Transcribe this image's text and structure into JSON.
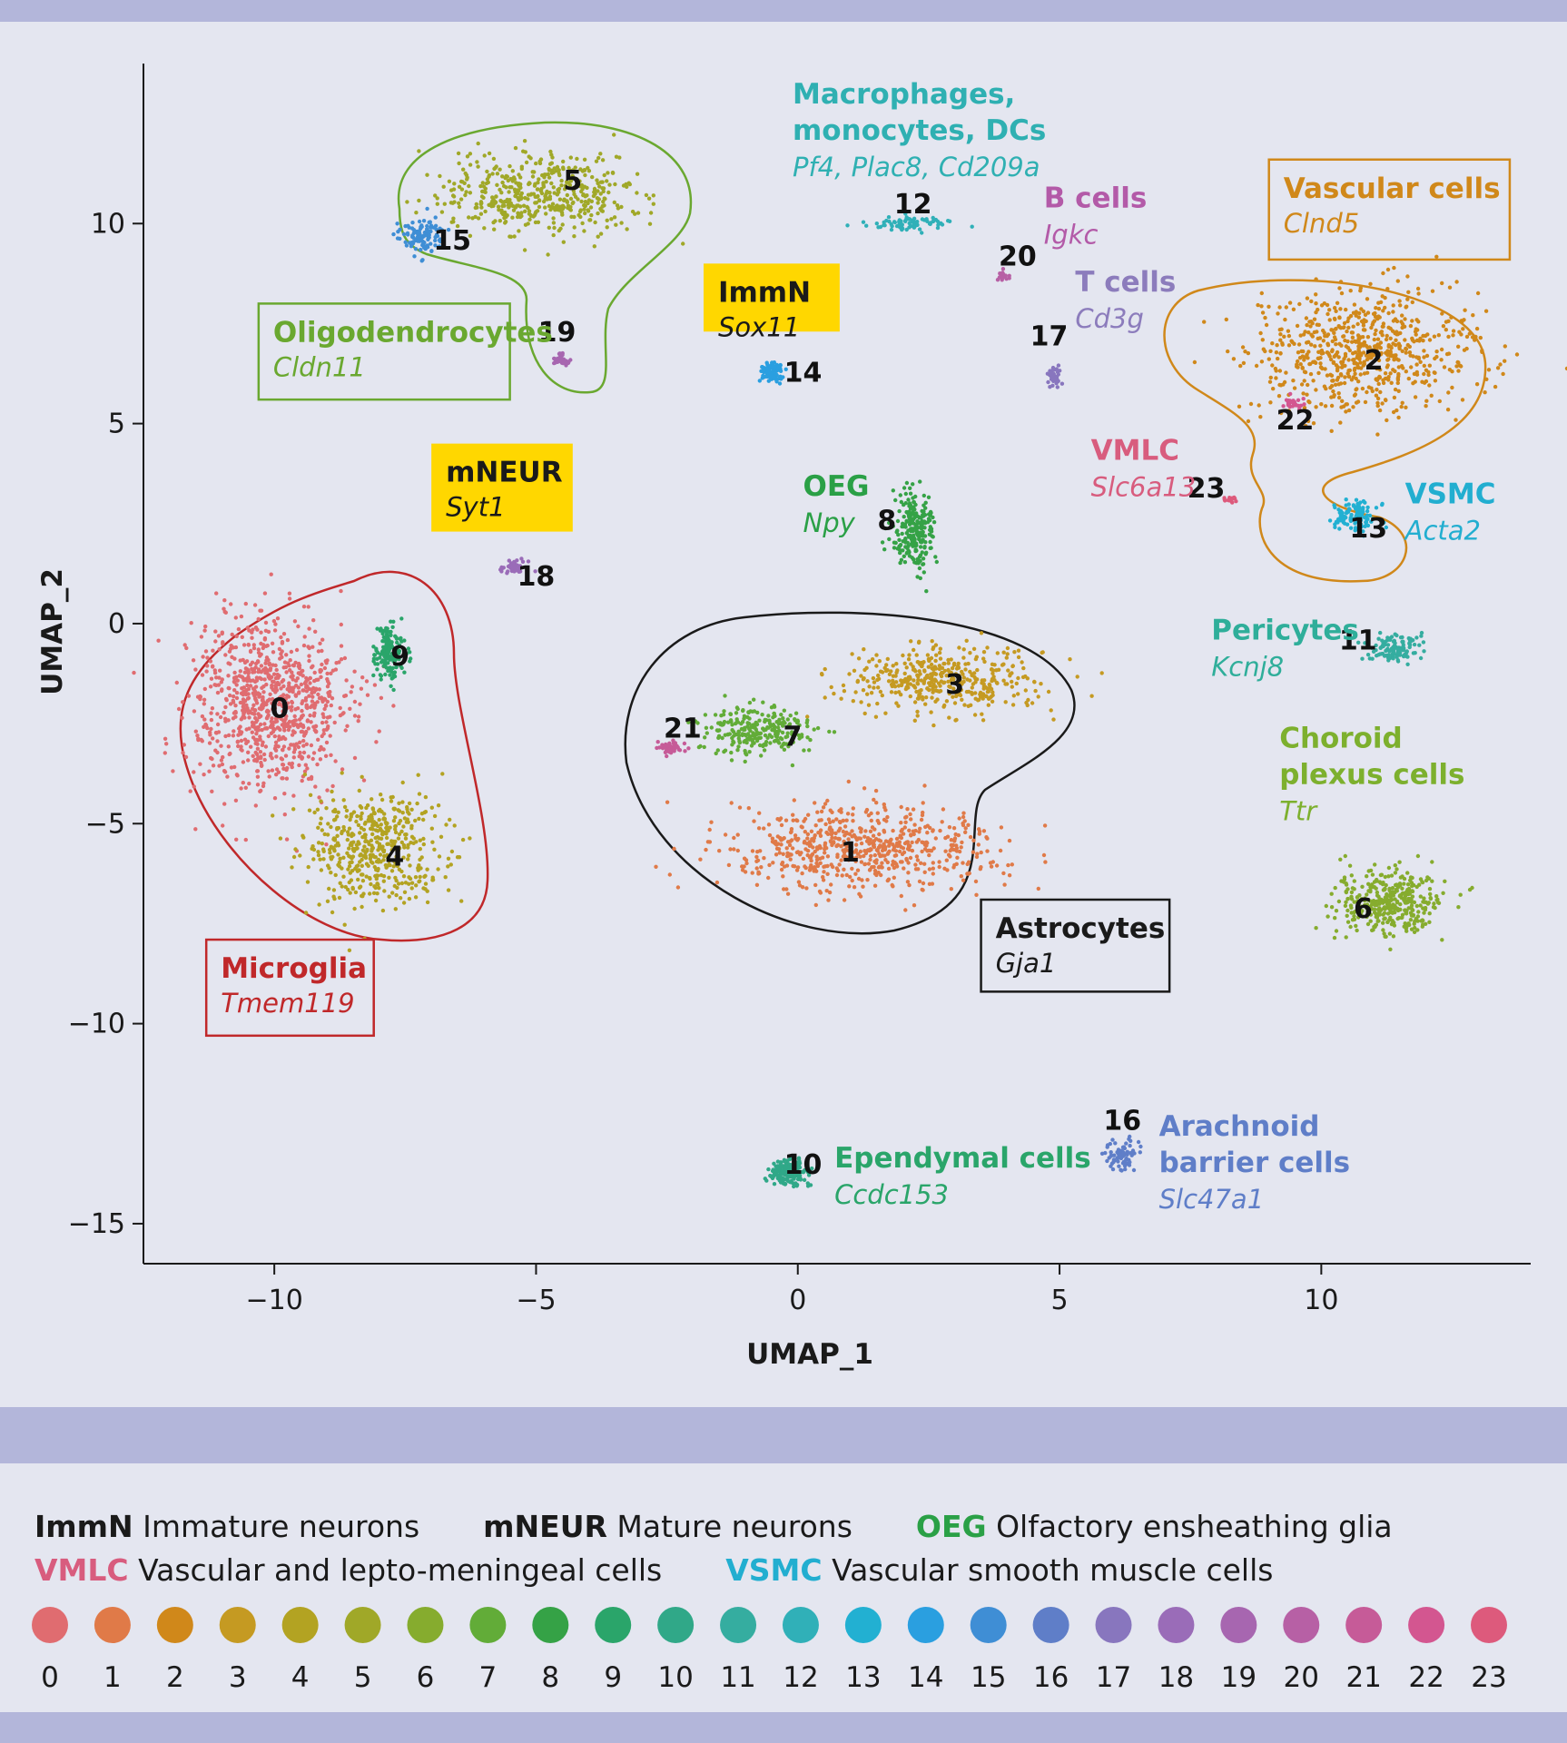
{
  "chart_data": {
    "type": "scatter",
    "title": "",
    "xlabel": "UMAP_1",
    "ylabel": "UMAP_2",
    "xlim": [
      -12.5,
      14
    ],
    "ylim": [
      -16,
      14
    ],
    "x_ticks": [
      -10,
      -5,
      0,
      5,
      10
    ],
    "y_ticks": [
      -15,
      -10,
      -5,
      0,
      5,
      10
    ],
    "x_tick_labels": [
      "−10",
      "−5",
      "0",
      "5",
      "10"
    ],
    "y_tick_labels": [
      "−15",
      "−10",
      "−5",
      "0",
      "5",
      "10"
    ],
    "grid": false,
    "cluster_colors": [
      "#e06c70",
      "#e07a48",
      "#d0881a",
      "#c59a22",
      "#b3a322",
      "#a0a828",
      "#86ac2e",
      "#62ac38",
      "#35a246",
      "#2aa56a",
      "#30a888",
      "#35ada0",
      "#30b0b8",
      "#22b0d2",
      "#2a9fe0",
      "#3f8ed5",
      "#5f7ec8",
      "#8876be",
      "#9a6cb8",
      "#a766b0",
      "#b760a5",
      "#c65b98",
      "#d35690",
      "#dd5a7c"
    ],
    "clusters": [
      {
        "id": 0,
        "x": -10.1,
        "y": -2.0,
        "sx": 1.35,
        "sy": 2.0,
        "n": 900
      },
      {
        "id": 1,
        "x": 1.2,
        "y": -5.6,
        "sx": 2.4,
        "sy": 0.9,
        "n": 650
      },
      {
        "id": 2,
        "x": 10.8,
        "y": 6.8,
        "sx": 2.0,
        "sy": 1.3,
        "n": 700
      },
      {
        "id": 3,
        "x": 2.8,
        "y": -1.4,
        "sx": 1.7,
        "sy": 0.75,
        "n": 420
      },
      {
        "id": 4,
        "x": -8.1,
        "y": -5.6,
        "sx": 1.15,
        "sy": 1.25,
        "n": 500
      },
      {
        "id": 5,
        "x": -5.0,
        "y": 10.7,
        "sx": 1.7,
        "sy": 0.9,
        "n": 500
      },
      {
        "id": 6,
        "x": 11.3,
        "y": -7.0,
        "sx": 0.9,
        "sy": 0.75,
        "n": 380
      },
      {
        "id": 7,
        "x": -0.8,
        "y": -2.7,
        "sx": 1.0,
        "sy": 0.6,
        "n": 260
      },
      {
        "id": 8,
        "x": 2.2,
        "y": 2.3,
        "sx": 0.35,
        "sy": 0.9,
        "n": 240
      },
      {
        "id": 9,
        "x": -7.8,
        "y": -0.7,
        "sx": 0.25,
        "sy": 0.6,
        "n": 160
      },
      {
        "id": 10,
        "x": -0.2,
        "y": -13.7,
        "sx": 0.35,
        "sy": 0.35,
        "n": 170
      },
      {
        "id": 11,
        "x": 11.4,
        "y": -0.6,
        "sx": 0.5,
        "sy": 0.3,
        "n": 120
      },
      {
        "id": 12,
        "x": 2.2,
        "y": 10.0,
        "sx": 0.8,
        "sy": 0.15,
        "n": 80
      },
      {
        "id": 13,
        "x": 10.7,
        "y": 2.7,
        "sx": 0.4,
        "sy": 0.35,
        "n": 110
      },
      {
        "id": 14,
        "x": -0.5,
        "y": 6.3,
        "sx": 0.2,
        "sy": 0.2,
        "n": 90
      },
      {
        "id": 15,
        "x": -7.2,
        "y": 9.7,
        "sx": 0.35,
        "sy": 0.4,
        "n": 110
      },
      {
        "id": 16,
        "x": 6.2,
        "y": -13.3,
        "sx": 0.25,
        "sy": 0.3,
        "n": 80
      },
      {
        "id": 17,
        "x": 4.9,
        "y": 6.2,
        "sx": 0.1,
        "sy": 0.3,
        "n": 40
      },
      {
        "id": 18,
        "x": -5.4,
        "y": 1.4,
        "sx": 0.25,
        "sy": 0.15,
        "n": 40
      },
      {
        "id": 19,
        "x": -4.5,
        "y": 6.6,
        "sx": 0.15,
        "sy": 0.15,
        "n": 40
      },
      {
        "id": 20,
        "x": 3.9,
        "y": 8.7,
        "sx": 0.12,
        "sy": 0.1,
        "n": 25
      },
      {
        "id": 21,
        "x": -2.4,
        "y": -3.1,
        "sx": 0.25,
        "sy": 0.15,
        "n": 40
      },
      {
        "id": 22,
        "x": 9.5,
        "y": 5.5,
        "sx": 0.25,
        "sy": 0.15,
        "n": 25
      },
      {
        "id": 23,
        "x": 8.3,
        "y": 3.1,
        "sx": 0.15,
        "sy": 0.08,
        "n": 20
      }
    ],
    "cluster_labels": [
      {
        "id": 0,
        "text": "0",
        "x": -9.9,
        "y": -2.1
      },
      {
        "id": 1,
        "text": "1",
        "x": 1.0,
        "y": -5.7
      },
      {
        "id": 2,
        "text": "2",
        "x": 11.0,
        "y": 6.6
      },
      {
        "id": 3,
        "text": "3",
        "x": 3.0,
        "y": -1.5
      },
      {
        "id": 4,
        "text": "4",
        "x": -7.7,
        "y": -5.8
      },
      {
        "id": 5,
        "text": "5",
        "x": -4.3,
        "y": 11.1
      },
      {
        "id": 6,
        "text": "6",
        "x": 10.8,
        "y": -7.1
      },
      {
        "id": 7,
        "text": "7",
        "x": -0.1,
        "y": -2.8
      },
      {
        "id": 8,
        "text": "8",
        "x": 1.7,
        "y": 2.6
      },
      {
        "id": 9,
        "text": "9",
        "x": -7.6,
        "y": -0.8
      },
      {
        "id": 10,
        "text": "10",
        "x": 0.1,
        "y": -13.5
      },
      {
        "id": 11,
        "text": "11",
        "x": 10.7,
        "y": -0.4
      },
      {
        "id": 12,
        "text": "12",
        "x": 2.2,
        "y": 10.5
      },
      {
        "id": 13,
        "text": "13",
        "x": 10.9,
        "y": 2.4
      },
      {
        "id": 14,
        "text": "14",
        "x": 0.1,
        "y": 6.3
      },
      {
        "id": 15,
        "text": "15",
        "x": -6.6,
        "y": 9.6
      },
      {
        "id": 16,
        "text": "16",
        "x": 6.2,
        "y": -12.4
      },
      {
        "id": 17,
        "text": "17",
        "x": 4.8,
        "y": 7.2
      },
      {
        "id": 18,
        "text": "18",
        "x": -5.0,
        "y": 1.2
      },
      {
        "id": 19,
        "text": "19",
        "x": -4.6,
        "y": 7.3
      },
      {
        "id": 20,
        "text": "20",
        "x": 4.2,
        "y": 9.2
      },
      {
        "id": 21,
        "text": "21",
        "x": -2.2,
        "y": -2.6
      },
      {
        "id": 22,
        "text": "22",
        "x": 9.5,
        "y": 5.1
      },
      {
        "id": 23,
        "text": "23",
        "x": 7.8,
        "y": 3.4
      }
    ],
    "annotations": [
      {
        "name": "Macrophages, monocytes, DCs",
        "lines": [
          "Macrophages,",
          "monocytes, DCs"
        ],
        "marker": "Pf4, Plac8, Cd209a",
        "color": "#2fb0b2",
        "x": -0.1,
        "y": 13.0
      },
      {
        "name": "B cells",
        "lines": [
          "B cells"
        ],
        "marker": "Igkc",
        "color": "#b35aa8",
        "x": 4.7,
        "y": 10.4
      },
      {
        "name": "T cells",
        "lines": [
          "T cells"
        ],
        "marker": "Cd3g",
        "color": "#8c7cbc",
        "x": 5.3,
        "y": 8.3
      },
      {
        "name": "VMLC",
        "lines": [
          "VMLC"
        ],
        "marker": "Slc6a13",
        "color": "#d85c7e",
        "x": 5.6,
        "y": 4.1
      },
      {
        "name": "OEG",
        "lines": [
          "OEG"
        ],
        "marker": "Npy",
        "color": "#2aa046",
        "x": 0.1,
        "y": 3.2
      },
      {
        "name": "VSMC",
        "lines": [
          "VSMC"
        ],
        "marker": "Acta2",
        "color": "#22aed0",
        "x": 11.6,
        "y": 3.0
      },
      {
        "name": "Pericytes",
        "lines": [
          "Pericytes"
        ],
        "marker": "Kcnj8",
        "color": "#2fae9a",
        "x": 7.9,
        "y": -0.4
      },
      {
        "name": "Choroid plexus cells",
        "lines": [
          "Choroid",
          "plexus cells"
        ],
        "marker": "Ttr",
        "color": "#7db02e",
        "x": 9.2,
        "y": -3.1
      },
      {
        "name": "Ependymal cells",
        "lines": [
          "Ependymal cells"
        ],
        "marker": "Ccdc153",
        "color": "#2aa56a",
        "x": 0.7,
        "y": -13.6
      },
      {
        "name": "Arachnoid barrier cells",
        "lines": [
          "Arachnoid",
          "barrier cells"
        ],
        "marker": "Slc47a1",
        "color": "#5f7ec8",
        "x": 6.9,
        "y": -12.8
      }
    ],
    "boxed_labels": [
      {
        "name": "Oligodendrocytes",
        "marker": "Cldn11",
        "color": "#6aa830",
        "fill": "none",
        "x0": -10.3,
        "y0": 8.0,
        "x1": -5.5,
        "y1": 5.6
      },
      {
        "name": "Vascular cells",
        "marker": "Clnd5",
        "color": "#d0881a",
        "fill": "none",
        "x0": 9.0,
        "y0": 11.6,
        "x1": 13.6,
        "y1": 9.1
      },
      {
        "name": "Microglia",
        "marker": "Tmem119",
        "color": "#c0282a",
        "fill": "none",
        "x0": -11.3,
        "y0": -7.9,
        "x1": -8.1,
        "y1": -10.3
      },
      {
        "name": "Astrocytes",
        "marker": "Gja1",
        "color": "#1a1a1a",
        "fill": "none",
        "x0": 3.5,
        "y0": -6.9,
        "x1": 7.1,
        "y1": -9.2
      },
      {
        "name": "ImmN",
        "marker": "Sox11",
        "color": "#1a1a1a",
        "fill": "#ffd700",
        "x0": -1.8,
        "y0": 9.0,
        "x1": 0.8,
        "y1": 7.3
      },
      {
        "name": "mNEUR",
        "marker": "Syt1",
        "color": "#1a1a1a",
        "fill": "#ffd700",
        "x0": -7.0,
        "y0": 4.5,
        "x1": -4.3,
        "y1": 2.3
      }
    ]
  },
  "legend": {
    "abbreviations_row1": [
      {
        "abbr": "ImmN",
        "desc": "Immature neurons",
        "color": "#1a1a1a"
      },
      {
        "abbr": "mNEUR",
        "desc": "Mature neurons",
        "color": "#1a1a1a"
      },
      {
        "abbr": "OEG",
        "desc": "Olfactory ensheathing glia",
        "color": "#2aa046"
      }
    ],
    "abbreviations_row2": [
      {
        "abbr": "VMLC",
        "desc": "Vascular and lepto-meningeal cells",
        "color": "#d85c7e"
      },
      {
        "abbr": "VSMC",
        "desc": "Vascular smooth muscle cells",
        "color": "#22aed0"
      }
    ],
    "cluster_ids": [
      "0",
      "1",
      "2",
      "3",
      "4",
      "5",
      "6",
      "7",
      "8",
      "9",
      "10",
      "11",
      "12",
      "13",
      "14",
      "15",
      "16",
      "17",
      "18",
      "19",
      "20",
      "21",
      "22",
      "23"
    ]
  }
}
